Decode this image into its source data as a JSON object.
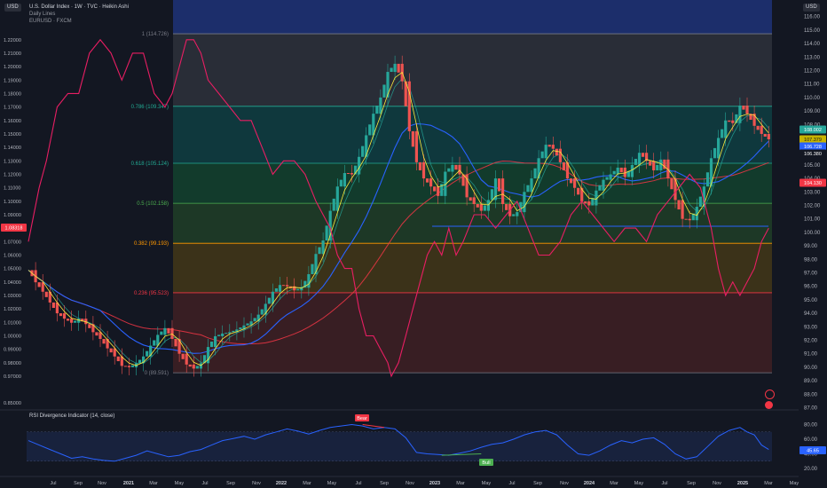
{
  "chart": {
    "title": "U.S. Dollar Index · 1W · TVC · Heikin Ashi",
    "subtitle_lines": [
      "Daily Lines",
      "EURUSD · FXCM"
    ],
    "left_scale_label": "USD",
    "right_scale_label": "USD",
    "rsi_title": "RSI Divergence Indicator (14, close)"
  },
  "chart_data": [
    {
      "type": "line",
      "description_series": [
        "Heikin Ashi candles (DXY weekly)",
        "EURUSD line",
        "moving averages"
      ],
      "right_axis": {
        "ticks": [
          87.0,
          88.0,
          89.0,
          90.0,
          91.0,
          92.0,
          93.0,
          94.0,
          95.0,
          96.0,
          97.0,
          98.0,
          99.0,
          100.0,
          101.0,
          102.0,
          103.0,
          104.0,
          105.0,
          106.0,
          107.0,
          108.0,
          109.0,
          110.0,
          111.0,
          112.0,
          113.0,
          114.0,
          115.0,
          116.0
        ],
        "unit": "USD"
      },
      "left_axis": {
        "ticks": [
          0.85,
          0.86,
          0.87,
          0.88,
          0.89,
          0.9,
          0.91,
          0.92,
          0.93,
          0.94,
          0.95,
          0.96,
          0.97,
          0.98,
          0.99,
          1.0,
          1.01,
          1.02,
          1.03,
          1.04,
          1.05,
          1.06,
          1.07,
          1.08,
          1.09,
          1.1,
          1.11,
          1.12,
          1.13,
          1.14,
          1.15,
          1.16,
          1.17,
          1.18,
          1.19,
          1.2,
          1.21,
          1.22,
          1.23,
          1.24
        ],
        "unit": "USD",
        "visible_tick_labels": [
          "0.85000",
          "0.97000",
          "0.98000",
          "0.99000",
          "1.00000",
          "1.01000",
          "1.02000",
          "1.03000",
          "1.04000",
          "1.05000",
          "1.06000",
          "1.07000",
          "1.08000",
          "1.09000",
          "1.10000",
          "1.11000",
          "1.12000",
          "1.13000",
          "1.14000",
          "1.15000",
          "1.16000",
          "1.17000",
          "1.18000",
          "1.19000",
          "1.20000",
          "1.21000",
          "1.22000",
          "1.23000",
          "1.24000"
        ]
      },
      "x_axis": {
        "labels": [
          "Jul",
          "Sep",
          "Nov",
          "2021",
          "Mar",
          "May",
          "Jul",
          "Sep",
          "Nov",
          "2022",
          "Mar",
          "May",
          "Jul",
          "Sep",
          "Nov",
          "2023",
          "Mar",
          "May",
          "Jul",
          "Sep",
          "Nov",
          "2024",
          "Mar",
          "May",
          "Jul",
          "Sep",
          "Nov",
          "2025",
          "Mar",
          "May"
        ]
      },
      "fibonacci": [
        {
          "label": "1 (114.726)",
          "value": 114.726,
          "color": "#787b86"
        },
        {
          "label": "0.786 (109.347)",
          "value": 109.347,
          "color": "#22ab94"
        },
        {
          "label": "0.618 (105.124)",
          "value": 105.124,
          "color": "#22ab94"
        },
        {
          "label": "0.5 (102.158)",
          "value": 102.158,
          "color": "#4caf50"
        },
        {
          "label": "0.382 (99.193)",
          "value": 99.193,
          "color": "#ff9800"
        },
        {
          "label": "0.236 (95.523)",
          "value": 95.523,
          "color": "#f23645"
        },
        {
          "label": "0 (89.591)",
          "value": 89.591,
          "color": "#787b86"
        }
      ],
      "horizontal_level": 100.45,
      "dxy_close_path": [
        [
          0,
          97.2
        ],
        [
          2,
          96.3
        ],
        [
          4,
          95.6
        ],
        [
          6,
          94.8
        ],
        [
          8,
          94.0
        ],
        [
          10,
          93.6
        ],
        [
          12,
          93.3
        ],
        [
          14,
          93.6
        ],
        [
          16,
          93.2
        ],
        [
          18,
          92.6
        ],
        [
          20,
          92.1
        ],
        [
          22,
          91.4
        ],
        [
          24,
          90.8
        ],
        [
          26,
          90.1
        ],
        [
          28,
          90.0
        ],
        [
          30,
          90.3
        ],
        [
          32,
          90.8
        ],
        [
          34,
          91.6
        ],
        [
          36,
          92.4
        ],
        [
          38,
          92.9
        ],
        [
          40,
          92.1
        ],
        [
          42,
          91.0
        ],
        [
          44,
          90.2
        ],
        [
          46,
          89.9
        ],
        [
          48,
          90.3
        ],
        [
          50,
          91.5
        ],
        [
          52,
          92.3
        ],
        [
          54,
          92.5
        ],
        [
          56,
          92.6
        ],
        [
          58,
          92.8
        ],
        [
          60,
          93.1
        ],
        [
          62,
          93.4
        ],
        [
          64,
          93.9
        ],
        [
          66,
          94.7
        ],
        [
          68,
          95.6
        ],
        [
          70,
          96.1
        ],
        [
          72,
          96.0
        ],
        [
          74,
          95.7
        ],
        [
          76,
          95.9
        ],
        [
          78,
          96.9
        ],
        [
          80,
          98.4
        ],
        [
          82,
          99.4
        ],
        [
          84,
          101.6
        ],
        [
          86,
          103.4
        ],
        [
          88,
          104.4
        ],
        [
          90,
          104.3
        ],
        [
          92,
          105.6
        ],
        [
          94,
          107.2
        ],
        [
          96,
          108.8
        ],
        [
          98,
          110.0
        ],
        [
          100,
          111.9
        ],
        [
          102,
          112.5
        ],
        [
          104,
          111.2
        ],
        [
          106,
          107.5
        ],
        [
          108,
          105.2
        ],
        [
          110,
          104.0
        ],
        [
          112,
          103.4
        ],
        [
          114,
          102.7
        ],
        [
          116,
          104.5
        ],
        [
          118,
          105.0
        ],
        [
          120,
          104.3
        ],
        [
          122,
          102.6
        ],
        [
          124,
          102.1
        ],
        [
          126,
          101.6
        ],
        [
          128,
          102.4
        ],
        [
          130,
          104.0
        ],
        [
          132,
          102.1
        ],
        [
          134,
          101.2
        ],
        [
          136,
          101.5
        ],
        [
          138,
          103.0
        ],
        [
          140,
          104.0
        ],
        [
          142,
          105.5
        ],
        [
          144,
          106.5
        ],
        [
          146,
          106.2
        ],
        [
          148,
          105.2
        ],
        [
          150,
          104.0
        ],
        [
          152,
          103.3
        ],
        [
          154,
          102.3
        ],
        [
          156,
          102.0
        ],
        [
          158,
          103.1
        ],
        [
          160,
          103.9
        ],
        [
          162,
          104.3
        ],
        [
          164,
          104.8
        ],
        [
          166,
          104.1
        ],
        [
          168,
          105.0
        ],
        [
          170,
          105.9
        ],
        [
          172,
          105.3
        ],
        [
          174,
          104.6
        ],
        [
          176,
          105.4
        ],
        [
          178,
          104.0
        ],
        [
          180,
          102.4
        ],
        [
          182,
          101.0
        ],
        [
          184,
          100.9
        ],
        [
          186,
          101.9
        ],
        [
          188,
          103.4
        ],
        [
          190,
          105.5
        ],
        [
          192,
          107.0
        ],
        [
          194,
          108.3
        ],
        [
          196,
          108.1
        ],
        [
          198,
          109.4
        ],
        [
          200,
          108.8
        ],
        [
          202,
          107.9
        ],
        [
          204,
          107.3
        ],
        [
          206,
          106.9
        ]
      ],
      "eurusd_path": [
        [
          0,
          1.07
        ],
        [
          3,
          1.11
        ],
        [
          5,
          1.13
        ],
        [
          8,
          1.17
        ],
        [
          11,
          1.18
        ],
        [
          14,
          1.18
        ],
        [
          17,
          1.21
        ],
        [
          20,
          1.22
        ],
        [
          23,
          1.21
        ],
        [
          26,
          1.19
        ],
        [
          29,
          1.21
        ],
        [
          32,
          1.21
        ],
        [
          35,
          1.18
        ],
        [
          38,
          1.17
        ],
        [
          40,
          1.18
        ],
        [
          42,
          1.2
        ],
        [
          44,
          1.22
        ],
        [
          46,
          1.22
        ],
        [
          48,
          1.21
        ],
        [
          50,
          1.19
        ],
        [
          53,
          1.18
        ],
        [
          56,
          1.17
        ],
        [
          59,
          1.16
        ],
        [
          62,
          1.16
        ],
        [
          65,
          1.14
        ],
        [
          68,
          1.12
        ],
        [
          71,
          1.13
        ],
        [
          74,
          1.13
        ],
        [
          77,
          1.12
        ],
        [
          80,
          1.1
        ],
        [
          82,
          1.09
        ],
        [
          84,
          1.08
        ],
        [
          86,
          1.06
        ],
        [
          88,
          1.05
        ],
        [
          90,
          1.05
        ],
        [
          92,
          1.02
        ],
        [
          94,
          1.0
        ],
        [
          96,
          1.0
        ],
        [
          98,
          0.99
        ],
        [
          100,
          0.98
        ],
        [
          101,
          0.97
        ],
        [
          103,
          0.98
        ],
        [
          105,
          1.0
        ],
        [
          107,
          1.02
        ],
        [
          109,
          1.04
        ],
        [
          111,
          1.06
        ],
        [
          113,
          1.07
        ],
        [
          115,
          1.06
        ],
        [
          117,
          1.08
        ],
        [
          119,
          1.06
        ],
        [
          121,
          1.07
        ],
        [
          124,
          1.09
        ],
        [
          127,
          1.09
        ],
        [
          130,
          1.08
        ],
        [
          133,
          1.09
        ],
        [
          136,
          1.1
        ],
        [
          139,
          1.08
        ],
        [
          142,
          1.06
        ],
        [
          145,
          1.06
        ],
        [
          148,
          1.07
        ],
        [
          151,
          1.09
        ],
        [
          154,
          1.1
        ],
        [
          157,
          1.09
        ],
        [
          160,
          1.08
        ],
        [
          163,
          1.07
        ],
        [
          166,
          1.08
        ],
        [
          169,
          1.08
        ],
        [
          172,
          1.07
        ],
        [
          175,
          1.09
        ],
        [
          178,
          1.1
        ],
        [
          181,
          1.11
        ],
        [
          184,
          1.12
        ],
        [
          187,
          1.11
        ],
        [
          190,
          1.08
        ],
        [
          192,
          1.05
        ],
        [
          194,
          1.03
        ],
        [
          196,
          1.04
        ],
        [
          198,
          1.03
        ],
        [
          200,
          1.04
        ],
        [
          202,
          1.05
        ],
        [
          204,
          1.07
        ],
        [
          206,
          1.08
        ]
      ],
      "price_labels": [
        {
          "label": "108.002",
          "color": "#26a69a"
        },
        {
          "label": "107.379",
          "color": "#c8b400"
        },
        {
          "label": "106.728",
          "color": "#2962ff"
        },
        {
          "label": "106.380",
          "color": "#ffffff"
        },
        {
          "label": "104.130",
          "color": "#f23645"
        },
        {
          "label": "1.08318",
          "color": "#f23645"
        }
      ]
    },
    {
      "type": "line",
      "name": "RSI Divergence Indicator (14, close)",
      "y_axis_ticks": [
        20.0,
        40.0,
        60.0,
        80.0
      ],
      "band": [
        30,
        70
      ],
      "current_value": 45.65,
      "current_value_label": "45.65",
      "divergence_labels": [
        "Bear",
        "Bull"
      ],
      "rsi_path": [
        [
          0,
          58
        ],
        [
          3,
          52
        ],
        [
          6,
          46
        ],
        [
          9,
          40
        ],
        [
          12,
          34
        ],
        [
          15,
          36
        ],
        [
          18,
          33
        ],
        [
          21,
          31
        ],
        [
          24,
          30
        ],
        [
          27,
          34
        ],
        [
          30,
          38
        ],
        [
          33,
          44
        ],
        [
          36,
          40
        ],
        [
          39,
          36
        ],
        [
          42,
          38
        ],
        [
          45,
          43
        ],
        [
          48,
          46
        ],
        [
          51,
          52
        ],
        [
          54,
          58
        ],
        [
          57,
          61
        ],
        [
          60,
          64
        ],
        [
          63,
          60
        ],
        [
          66,
          66
        ],
        [
          69,
          70
        ],
        [
          72,
          74
        ],
        [
          75,
          71
        ],
        [
          78,
          67
        ],
        [
          81,
          72
        ],
        [
          84,
          76
        ],
        [
          87,
          78
        ],
        [
          90,
          80
        ],
        [
          93,
          78
        ],
        [
          96,
          74
        ],
        [
          99,
          76
        ],
        [
          102,
          74
        ],
        [
          105,
          62
        ],
        [
          108,
          42
        ],
        [
          111,
          40
        ],
        [
          114,
          39
        ],
        [
          117,
          38
        ],
        [
          120,
          41
        ],
        [
          123,
          44
        ],
        [
          126,
          49
        ],
        [
          129,
          53
        ],
        [
          132,
          55
        ],
        [
          135,
          60
        ],
        [
          138,
          66
        ],
        [
          141,
          70
        ],
        [
          144,
          72
        ],
        [
          147,
          66
        ],
        [
          150,
          52
        ],
        [
          153,
          40
        ],
        [
          156,
          38
        ],
        [
          159,
          44
        ],
        [
          162,
          52
        ],
        [
          165,
          58
        ],
        [
          168,
          55
        ],
        [
          171,
          60
        ],
        [
          174,
          62
        ],
        [
          177,
          53
        ],
        [
          180,
          40
        ],
        [
          183,
          33
        ],
        [
          186,
          36
        ],
        [
          189,
          50
        ],
        [
          192,
          64
        ],
        [
          195,
          72
        ],
        [
          198,
          76
        ],
        [
          200,
          70
        ],
        [
          202,
          66
        ],
        [
          204,
          52
        ],
        [
          206,
          46
        ]
      ]
    }
  ],
  "colors": {
    "background": "#131722",
    "fib_top_zone": "#2a2e39",
    "fib_blue_zone": "#1c2e6b",
    "ma_fast": "#ffeb3b",
    "ma_mid": "#2962ff",
    "ma_slow": "#f23645",
    "eurusd_line": "#e91e63",
    "rsi_line": "#2962ff"
  },
  "icons": [
    "compass-icon",
    "earnings-icon"
  ]
}
